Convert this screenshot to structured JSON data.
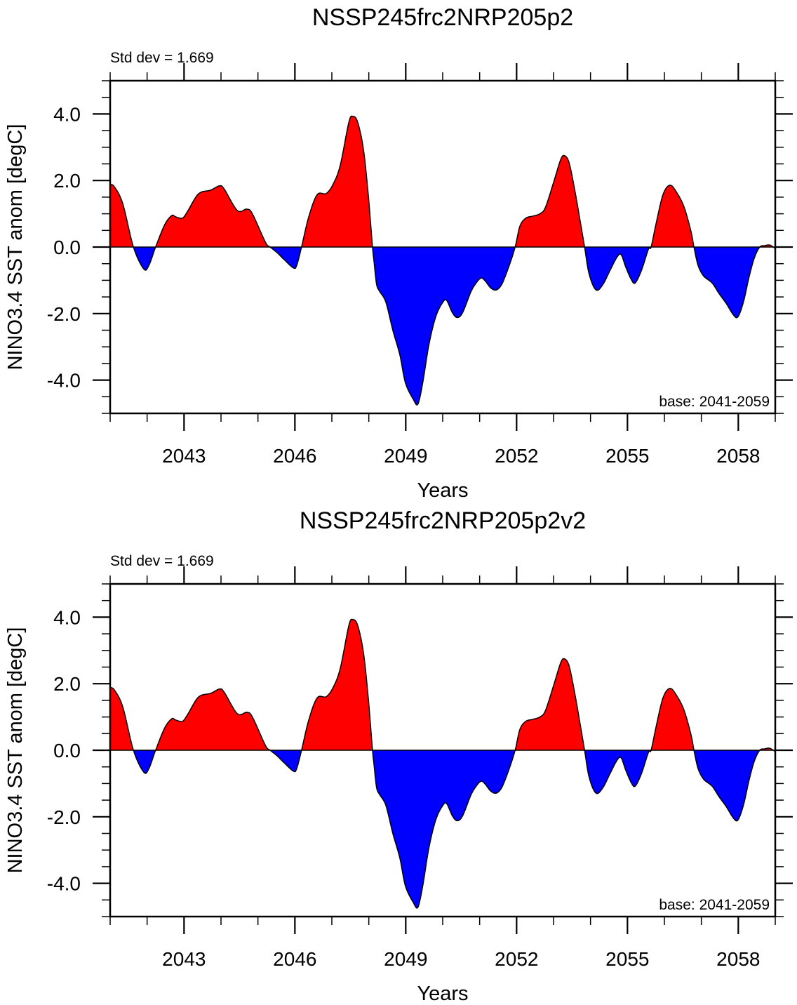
{
  "chart_data": [
    {
      "type": "area",
      "title": "NSSP245frc2NRP205p2",
      "xlabel": "Years",
      "ylabel": "NINO3.4 SST anom [degC]",
      "annotation_left": "Std dev = 1.669",
      "annotation_right": "base: 2041-2059",
      "xlim": [
        2041,
        2059
      ],
      "ylim": [
        -5,
        5
      ],
      "x_major_ticks": [
        2043,
        2046,
        2049,
        2052,
        2055,
        2058
      ],
      "x_tick_labels": [
        "2043",
        "2046",
        "2049",
        "2052",
        "2055",
        "2058"
      ],
      "x_minor_step": 1,
      "y_major_ticks": [
        -4,
        -2,
        0,
        2,
        4
      ],
      "y_tick_labels": [
        "-4.0",
        "-2.0",
        "0.0",
        "2.0",
        "4.0"
      ],
      "y_minor_step": 0.5,
      "reference_value": 0,
      "positive_color": "#ff0000",
      "negative_color": "#0000ff",
      "series_name": "NINO3.4 SST anomaly",
      "points": [
        [
          2041.0,
          1.88
        ],
        [
          2041.11,
          1.82
        ],
        [
          2041.34,
          1.31
        ],
        [
          2041.63,
          0.0
        ],
        [
          2041.91,
          -0.66
        ],
        [
          2042.05,
          -0.55
        ],
        [
          2042.23,
          0.0
        ],
        [
          2042.48,
          0.68
        ],
        [
          2042.67,
          0.95
        ],
        [
          2042.77,
          0.91
        ],
        [
          2042.96,
          0.87
        ],
        [
          2043.11,
          1.1
        ],
        [
          2043.39,
          1.6
        ],
        [
          2043.72,
          1.71
        ],
        [
          2043.96,
          1.84
        ],
        [
          2044.09,
          1.74
        ],
        [
          2044.44,
          1.1
        ],
        [
          2044.7,
          1.14
        ],
        [
          2044.85,
          1.0
        ],
        [
          2045.2,
          0.15
        ],
        [
          2045.33,
          0.0
        ],
        [
          2045.52,
          -0.17
        ],
        [
          2045.71,
          -0.38
        ],
        [
          2045.96,
          -0.63
        ],
        [
          2046.05,
          -0.55
        ],
        [
          2046.18,
          0.0
        ],
        [
          2046.37,
          0.89
        ],
        [
          2046.6,
          1.57
        ],
        [
          2046.85,
          1.61
        ],
        [
          2047.04,
          1.9
        ],
        [
          2047.23,
          2.47
        ],
        [
          2047.46,
          3.75
        ],
        [
          2047.57,
          3.93
        ],
        [
          2047.7,
          3.75
        ],
        [
          2047.86,
          2.9
        ],
        [
          2047.99,
          1.52
        ],
        [
          2048.1,
          0.0
        ],
        [
          2048.14,
          -0.42
        ],
        [
          2048.21,
          -1.12
        ],
        [
          2048.29,
          -1.33
        ],
        [
          2048.46,
          -1.65
        ],
        [
          2048.65,
          -2.5
        ],
        [
          2048.84,
          -3.24
        ],
        [
          2048.99,
          -4.08
        ],
        [
          2049.2,
          -4.57
        ],
        [
          2049.33,
          -4.72
        ],
        [
          2049.46,
          -4.08
        ],
        [
          2049.63,
          -2.92
        ],
        [
          2049.82,
          -2.07
        ],
        [
          2050.01,
          -1.65
        ],
        [
          2050.11,
          -1.61
        ],
        [
          2050.26,
          -1.97
        ],
        [
          2050.39,
          -2.12
        ],
        [
          2050.54,
          -1.97
        ],
        [
          2050.77,
          -1.33
        ],
        [
          2050.92,
          -1.06
        ],
        [
          2051.04,
          -0.93
        ],
        [
          2051.15,
          -1.02
        ],
        [
          2051.3,
          -1.23
        ],
        [
          2051.45,
          -1.29
        ],
        [
          2051.6,
          -1.12
        ],
        [
          2051.79,
          -0.59
        ],
        [
          2051.96,
          0.0
        ],
        [
          2052.09,
          0.63
        ],
        [
          2052.25,
          0.87
        ],
        [
          2052.44,
          0.93
        ],
        [
          2052.63,
          1.0
        ],
        [
          2052.78,
          1.19
        ],
        [
          2053.0,
          1.94
        ],
        [
          2053.19,
          2.62
        ],
        [
          2053.29,
          2.75
        ],
        [
          2053.42,
          2.54
        ],
        [
          2053.57,
          1.74
        ],
        [
          2053.73,
          0.72
        ],
        [
          2053.84,
          0.0
        ],
        [
          2053.96,
          -0.8
        ],
        [
          2054.15,
          -1.29
        ],
        [
          2054.34,
          -1.12
        ],
        [
          2054.53,
          -0.7
        ],
        [
          2054.72,
          -0.3
        ],
        [
          2054.83,
          -0.23
        ],
        [
          2054.95,
          -0.59
        ],
        [
          2055.1,
          -0.97
        ],
        [
          2055.21,
          -1.08
        ],
        [
          2055.38,
          -0.7
        ],
        [
          2055.57,
          -0.06
        ],
        [
          2055.64,
          0.0
        ],
        [
          2055.77,
          0.68
        ],
        [
          2055.96,
          1.57
        ],
        [
          2056.15,
          1.86
        ],
        [
          2056.34,
          1.63
        ],
        [
          2056.53,
          1.21
        ],
        [
          2056.72,
          0.47
        ],
        [
          2056.8,
          0.0
        ],
        [
          2056.91,
          -0.55
        ],
        [
          2057.06,
          -0.87
        ],
        [
          2057.29,
          -1.08
        ],
        [
          2057.48,
          -1.4
        ],
        [
          2057.67,
          -1.69
        ],
        [
          2057.86,
          -2.03
        ],
        [
          2057.99,
          -2.1
        ],
        [
          2058.14,
          -1.65
        ],
        [
          2058.29,
          -0.91
        ],
        [
          2058.43,
          -0.34
        ],
        [
          2058.58,
          0.0
        ],
        [
          2058.71,
          0.04
        ],
        [
          2058.85,
          0.06
        ],
        [
          2059.0,
          -0.04
        ]
      ]
    },
    {
      "type": "area",
      "title": "NSSP245frc2NRP205p2v2",
      "xlabel": "Years",
      "ylabel": "NINO3.4 SST anom [degC]",
      "annotation_left": "Std dev = 1.669",
      "annotation_right": "base: 2041-2059",
      "xlim": [
        2041,
        2059
      ],
      "ylim": [
        -5,
        5
      ],
      "x_major_ticks": [
        2043,
        2046,
        2049,
        2052,
        2055,
        2058
      ],
      "x_tick_labels": [
        "2043",
        "2046",
        "2049",
        "2052",
        "2055",
        "2058"
      ],
      "x_minor_step": 1,
      "y_major_ticks": [
        -4,
        -2,
        0,
        2,
        4
      ],
      "y_tick_labels": [
        "-4.0",
        "-2.0",
        "0.0",
        "2.0",
        "4.0"
      ],
      "y_minor_step": 0.5,
      "reference_value": 0,
      "positive_color": "#ff0000",
      "negative_color": "#0000ff",
      "series_name": "NINO3.4 SST anomaly",
      "points": [
        [
          2041.0,
          1.88
        ],
        [
          2041.11,
          1.82
        ],
        [
          2041.34,
          1.31
        ],
        [
          2041.63,
          0.0
        ],
        [
          2041.91,
          -0.66
        ],
        [
          2042.05,
          -0.55
        ],
        [
          2042.23,
          0.0
        ],
        [
          2042.48,
          0.68
        ],
        [
          2042.67,
          0.95
        ],
        [
          2042.77,
          0.91
        ],
        [
          2042.96,
          0.87
        ],
        [
          2043.11,
          1.1
        ],
        [
          2043.39,
          1.6
        ],
        [
          2043.72,
          1.71
        ],
        [
          2043.96,
          1.84
        ],
        [
          2044.09,
          1.74
        ],
        [
          2044.44,
          1.1
        ],
        [
          2044.7,
          1.14
        ],
        [
          2044.85,
          1.0
        ],
        [
          2045.2,
          0.15
        ],
        [
          2045.33,
          0.0
        ],
        [
          2045.52,
          -0.17
        ],
        [
          2045.71,
          -0.38
        ],
        [
          2045.96,
          -0.63
        ],
        [
          2046.05,
          -0.55
        ],
        [
          2046.18,
          0.0
        ],
        [
          2046.37,
          0.89
        ],
        [
          2046.6,
          1.57
        ],
        [
          2046.85,
          1.61
        ],
        [
          2047.04,
          1.9
        ],
        [
          2047.23,
          2.47
        ],
        [
          2047.46,
          3.75
        ],
        [
          2047.57,
          3.93
        ],
        [
          2047.7,
          3.75
        ],
        [
          2047.86,
          2.9
        ],
        [
          2047.99,
          1.52
        ],
        [
          2048.1,
          0.0
        ],
        [
          2048.14,
          -0.42
        ],
        [
          2048.21,
          -1.12
        ],
        [
          2048.29,
          -1.33
        ],
        [
          2048.46,
          -1.65
        ],
        [
          2048.65,
          -2.5
        ],
        [
          2048.84,
          -3.24
        ],
        [
          2048.99,
          -4.08
        ],
        [
          2049.2,
          -4.57
        ],
        [
          2049.33,
          -4.72
        ],
        [
          2049.46,
          -4.08
        ],
        [
          2049.63,
          -2.92
        ],
        [
          2049.82,
          -2.07
        ],
        [
          2050.01,
          -1.65
        ],
        [
          2050.11,
          -1.61
        ],
        [
          2050.26,
          -1.97
        ],
        [
          2050.39,
          -2.12
        ],
        [
          2050.54,
          -1.97
        ],
        [
          2050.77,
          -1.33
        ],
        [
          2050.92,
          -1.06
        ],
        [
          2051.04,
          -0.93
        ],
        [
          2051.15,
          -1.02
        ],
        [
          2051.3,
          -1.23
        ],
        [
          2051.45,
          -1.29
        ],
        [
          2051.6,
          -1.12
        ],
        [
          2051.79,
          -0.59
        ],
        [
          2051.96,
          0.0
        ],
        [
          2052.09,
          0.63
        ],
        [
          2052.25,
          0.87
        ],
        [
          2052.44,
          0.93
        ],
        [
          2052.63,
          1.0
        ],
        [
          2052.78,
          1.19
        ],
        [
          2053.0,
          1.94
        ],
        [
          2053.19,
          2.62
        ],
        [
          2053.29,
          2.75
        ],
        [
          2053.42,
          2.54
        ],
        [
          2053.57,
          1.74
        ],
        [
          2053.73,
          0.72
        ],
        [
          2053.84,
          0.0
        ],
        [
          2053.96,
          -0.8
        ],
        [
          2054.15,
          -1.29
        ],
        [
          2054.34,
          -1.12
        ],
        [
          2054.53,
          -0.7
        ],
        [
          2054.72,
          -0.3
        ],
        [
          2054.83,
          -0.23
        ],
        [
          2054.95,
          -0.59
        ],
        [
          2055.1,
          -0.97
        ],
        [
          2055.21,
          -1.08
        ],
        [
          2055.38,
          -0.7
        ],
        [
          2055.57,
          -0.06
        ],
        [
          2055.64,
          0.0
        ],
        [
          2055.77,
          0.68
        ],
        [
          2055.96,
          1.57
        ],
        [
          2056.15,
          1.86
        ],
        [
          2056.34,
          1.63
        ],
        [
          2056.53,
          1.21
        ],
        [
          2056.72,
          0.47
        ],
        [
          2056.8,
          0.0
        ],
        [
          2056.91,
          -0.55
        ],
        [
          2057.06,
          -0.87
        ],
        [
          2057.29,
          -1.08
        ],
        [
          2057.48,
          -1.4
        ],
        [
          2057.67,
          -1.69
        ],
        [
          2057.86,
          -2.03
        ],
        [
          2057.99,
          -2.1
        ],
        [
          2058.14,
          -1.65
        ],
        [
          2058.29,
          -0.91
        ],
        [
          2058.43,
          -0.34
        ],
        [
          2058.58,
          0.0
        ],
        [
          2058.71,
          0.04
        ],
        [
          2058.85,
          0.06
        ],
        [
          2059.0,
          -0.04
        ]
      ]
    }
  ]
}
